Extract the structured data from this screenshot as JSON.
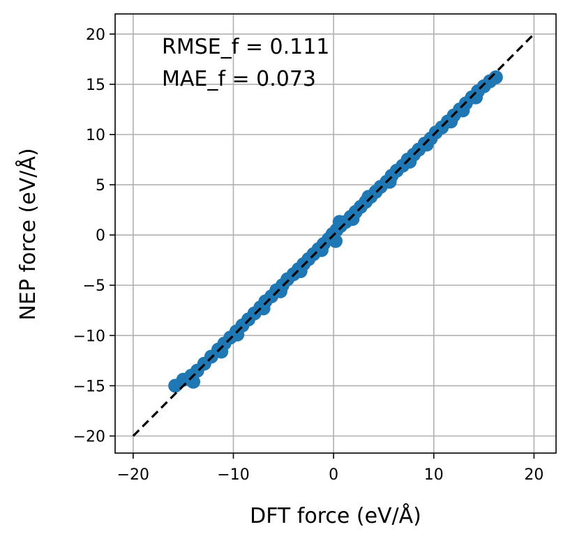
{
  "chart_data": {
    "type": "scatter",
    "xlabel": "DFT force (eV/Å)",
    "ylabel": "NEP force (eV/Å)",
    "xlim": [
      -21.8,
      22.2
    ],
    "ylim": [
      -21.7,
      22.0
    ],
    "xticks": [
      -20,
      -10,
      0,
      10,
      20
    ],
    "yticks": [
      -20,
      -15,
      -10,
      -5,
      0,
      5,
      10,
      15,
      20
    ],
    "xtick_labels": [
      "−20",
      "−10",
      "0",
      "10",
      "20"
    ],
    "ytick_labels": [
      "−20",
      "−15",
      "−10",
      "−5",
      "0",
      "5",
      "10",
      "15",
      "20"
    ],
    "grid": true,
    "annotations": [
      "RMSE_f = 0.111",
      "MAE_f = 0.073"
    ],
    "reference_line": {
      "x": [
        -20,
        20
      ],
      "y": [
        -20,
        20
      ],
      "style": "dashed",
      "color": "#000000"
    },
    "series": [
      {
        "color": "#1f77b4",
        "x": [
          -15.8,
          -15.0,
          -14.2,
          -13.6,
          -12.9,
          -12.2,
          -11.5,
          -10.9,
          -10.3,
          -9.7,
          -9.1,
          -8.5,
          -7.9,
          -7.3,
          -6.8,
          -6.2,
          -5.7,
          -5.1,
          -4.6,
          -4.0,
          -3.5,
          -3.0,
          -2.5,
          -2.0,
          -1.5,
          -1.0,
          -0.5,
          -0.1,
          0.3,
          0.7,
          1.2,
          1.7,
          2.2,
          2.7,
          3.2,
          3.7,
          4.2,
          4.7,
          5.3,
          5.8,
          6.3,
          6.9,
          7.4,
          8.0,
          8.5,
          9.1,
          9.7,
          10.2,
          10.8,
          11.4,
          12.0,
          12.6,
          13.2,
          13.8,
          14.4,
          15.0,
          15.6,
          16.2,
          -14.0,
          -11.2,
          -9.6,
          -7.0,
          -5.3,
          -3.3,
          -1.2,
          0.2,
          0.6,
          1.9,
          3.5,
          5.6,
          7.6,
          9.3,
          11.7,
          12.9,
          14.2
        ],
        "y": [
          -15.0,
          -14.4,
          -14.0,
          -13.5,
          -12.8,
          -12.1,
          -11.4,
          -10.8,
          -10.2,
          -9.6,
          -9.0,
          -8.4,
          -7.8,
          -7.2,
          -6.6,
          -6.1,
          -5.5,
          -5.0,
          -4.4,
          -3.9,
          -3.4,
          -2.9,
          -2.4,
          -1.9,
          -1.4,
          -0.9,
          -0.4,
          0.1,
          0.5,
          0.9,
          1.3,
          1.8,
          2.3,
          2.8,
          3.3,
          3.8,
          4.3,
          4.8,
          5.3,
          5.9,
          6.4,
          6.9,
          7.5,
          8.0,
          8.5,
          9.1,
          9.6,
          10.2,
          10.7,
          11.3,
          11.9,
          12.5,
          13.1,
          13.7,
          14.3,
          14.8,
          15.3,
          15.7,
          -14.6,
          -11.6,
          -9.9,
          -7.3,
          -5.6,
          -3.6,
          -1.5,
          -0.6,
          1.3,
          1.6,
          3.8,
          5.3,
          7.3,
          9.0,
          11.3,
          12.4,
          13.7
        ]
      }
    ]
  }
}
